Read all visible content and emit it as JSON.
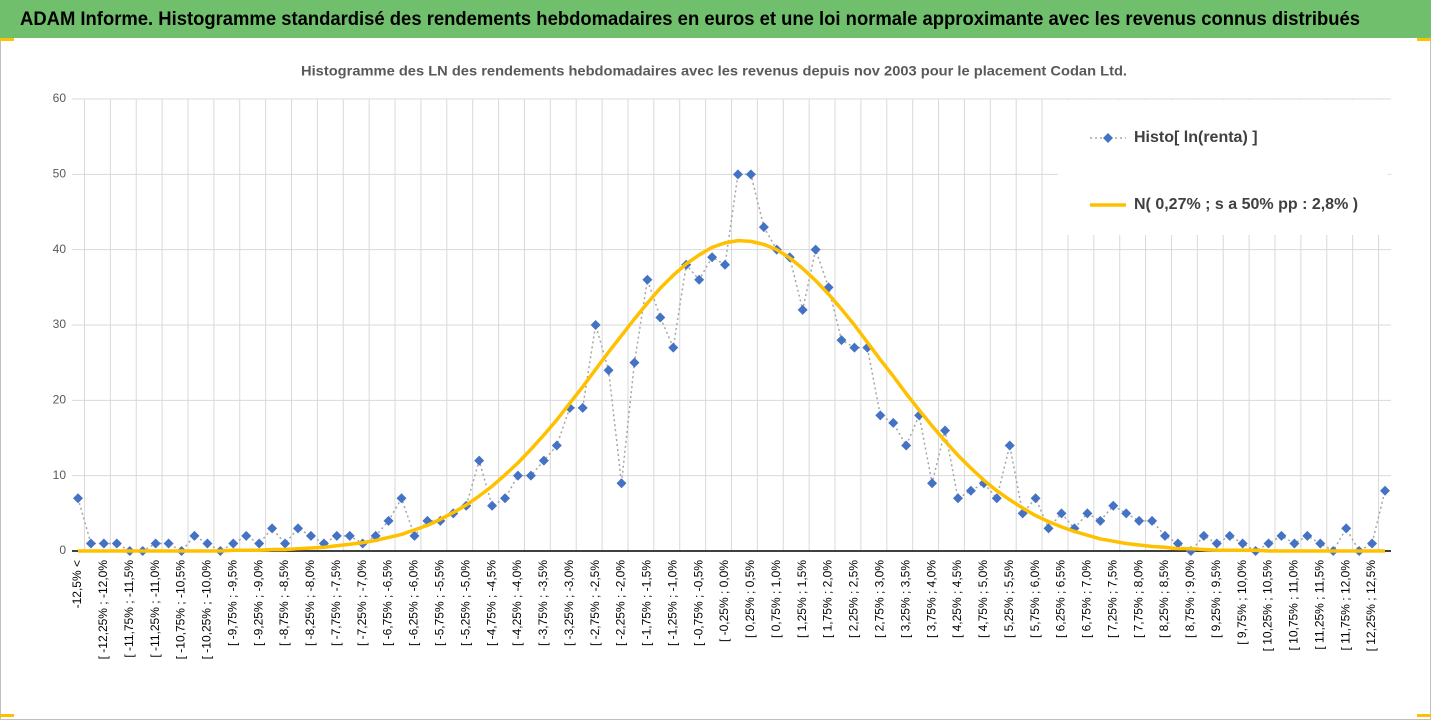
{
  "header": {
    "title": "ADAM Informe. Histogramme standardisé des rendements hebdomadaires en euros et une loi normale approximante avec les revenus connus distribués"
  },
  "chart_data": {
    "type": "line",
    "title": "Histogramme des LN des rendements hebdomadaires avec les revenus depuis nov 2003 pour le placement Codan Ltd.",
    "categories": [
      "-12,5% <",
      null,
      "[ -12,25% ; -12,0%",
      null,
      "[ -11,75% ; -11,5%",
      null,
      "[ -11,25% ; -11,0%",
      null,
      "[ -10,75% ; -10,5%",
      null,
      "[ -10,25% ; -10,0%",
      null,
      "[ -9,75% ; -9,5%",
      null,
      "[ -9,25% ; -9,0%",
      null,
      "[ -8,75% ; -8,5%",
      null,
      "[ -8,25% ; -8,0%",
      null,
      "[ -7,75% ; -7,5%",
      null,
      "[ -7,25% ; -7,0%",
      null,
      "[ -6,75% ; -6,5%",
      null,
      "[ -6,25% ; -6,0%",
      null,
      "[ -5,75% ; -5,5%",
      null,
      "[ -5,25% ; -5,0%",
      null,
      "[ -4,75% ; -4,5%",
      null,
      "[ -4,25% ; -4,0%",
      null,
      "[ -3,75% ; -3,5%",
      null,
      "[ -3,25% ; -3,0%",
      null,
      "[ -2,75% ; -2,5%",
      null,
      "[ -2,25% ; -2,0%",
      null,
      "[ -1,75% ; -1,5%",
      null,
      "[ -1,25% ; -1,0%",
      null,
      "[ -0,75% ; -0,5%",
      null,
      "[ -0,25% ; 0,0%",
      null,
      "[ 0,25% ; 0,5%",
      null,
      "[ 0,75% ; 1,0%",
      null,
      "[ 1,25% ; 1,5%",
      null,
      "[ 1,75% ; 2,0%",
      null,
      "[ 2,25% ; 2,5%",
      null,
      "[ 2,75% ; 3,0%",
      null,
      "[ 3,25% ; 3,5%",
      null,
      "[ 3,75% ; 4,0%",
      null,
      "[ 4,25% ; 4,5%",
      null,
      "[ 4,75% ; 5,0%",
      null,
      "[ 5,25% ; 5,5%",
      null,
      "[ 5,75% ; 6,0%",
      null,
      "[ 6,25% ; 6,5%",
      null,
      "[ 6,75% ; 7,0%",
      null,
      "[ 7,25% ; 7,5%",
      null,
      "[ 7,75% ; 8,0%",
      null,
      "[ 8,25% ; 8,5%",
      null,
      "[ 8,75% ; 9,0%",
      null,
      "[ 9,25% ; 9,5%",
      null,
      "[ 9,75% ; 10,0%",
      null,
      "[ 10,25% ; 10,5%",
      null,
      "[ 10,75% ; 11,0%",
      null,
      "[ 11,25% ; 11,5%",
      null,
      "[ 11,75% ; 12,0%",
      null,
      "[ 12,25% ; 12,5%",
      null
    ],
    "series": [
      {
        "name": "Histo[ ln(renta) ]",
        "color": "#4472c4",
        "line_color": "#a5a5a5",
        "line_style": "dotted",
        "marker": "diamond",
        "values": [
          7,
          1,
          1,
          1,
          0,
          0,
          1,
          1,
          0,
          2,
          1,
          0,
          1,
          2,
          1,
          3,
          1,
          3,
          2,
          1,
          2,
          2,
          1,
          2,
          4,
          7,
          2,
          4,
          4,
          5,
          6,
          12,
          6,
          7,
          10,
          10,
          12,
          14,
          19,
          19,
          30,
          24,
          9,
          25,
          36,
          31,
          27,
          38,
          36,
          39,
          38,
          50,
          50,
          43,
          40,
          39,
          32,
          40,
          35,
          28,
          27,
          27,
          18,
          17,
          14,
          18,
          9,
          16,
          7,
          8,
          9,
          7,
          14,
          5,
          7,
          3,
          5,
          3,
          5,
          4,
          6,
          5,
          4,
          4,
          2,
          1,
          0,
          2,
          1,
          2,
          1,
          0,
          1,
          2,
          1,
          2,
          1,
          0,
          3,
          0,
          1,
          8
        ]
      },
      {
        "name": "N( 0,27% ; s a 50% pp : 2,8% )",
        "color": "#ffc000",
        "line_color": "#ffc000",
        "line_style": "solid",
        "marker": "none",
        "values": [
          0,
          0,
          0,
          0,
          0,
          0,
          0,
          0,
          0,
          0,
          0,
          0,
          0.1,
          0.1,
          0.1,
          0.2,
          0.2,
          0.3,
          0.4,
          0.5,
          0.7,
          0.9,
          1.1,
          1.4,
          1.8,
          2.2,
          2.8,
          3.4,
          4.2,
          5.1,
          6.1,
          7.3,
          8.6,
          10.1,
          11.7,
          13.5,
          15.4,
          17.4,
          19.6,
          21.8,
          24.1,
          26.4,
          28.6,
          30.8,
          32.9,
          34.9,
          36.6,
          38.1,
          39.3,
          40.3,
          40.9,
          41.2,
          41.1,
          40.7,
          40.0,
          38.9,
          37.5,
          35.9,
          34.1,
          32.1,
          30.0,
          27.7,
          25.4,
          23.2,
          20.9,
          18.7,
          16.6,
          14.6,
          12.7,
          11.0,
          9.4,
          8.0,
          6.8,
          5.7,
          4.7,
          3.9,
          3.2,
          2.6,
          2.1,
          1.6,
          1.3,
          1.0,
          0.8,
          0.6,
          0.5,
          0.3,
          0.3,
          0.2,
          0.1,
          0.1,
          0.1,
          0.1,
          0,
          0,
          0,
          0,
          0,
          0,
          0,
          0,
          0,
          0
        ]
      }
    ],
    "ylim": [
      0,
      60
    ],
    "yticks": [
      0,
      10,
      20,
      30,
      40,
      50,
      60
    ],
    "grid": true,
    "legend": "top-right"
  }
}
